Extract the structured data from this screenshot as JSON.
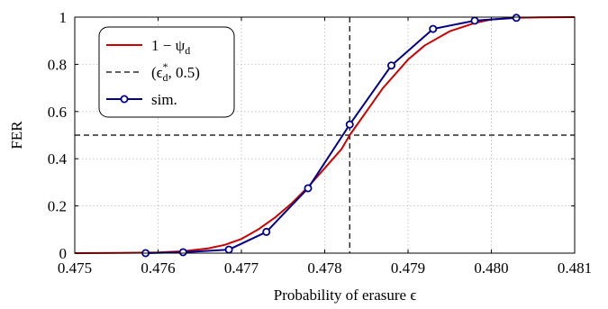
{
  "chart_data": {
    "type": "line",
    "xlabel": "Probability of erasure ϵ",
    "ylabel": "FER",
    "xlim": [
      0.475,
      0.481
    ],
    "ylim": [
      0,
      1
    ],
    "x_ticks": [
      "0.475",
      "0.476",
      "0.477",
      "0.478",
      "0.479",
      "0.480",
      "0.481"
    ],
    "y_ticks": [
      "0",
      "0.2",
      "0.4",
      "0.6",
      "0.8",
      "1"
    ],
    "grid": true,
    "legend_position": "top-left",
    "threshold": {
      "x": 0.4783,
      "y": 0.5
    },
    "series": [
      {
        "name": "1 − ψd",
        "color": "#cc0000",
        "style": "solid",
        "x": [
          0.475,
          0.4755,
          0.476,
          0.4763,
          0.4766,
          0.4768,
          0.477,
          0.4772,
          0.4774,
          0.4776,
          0.4778,
          0.478,
          0.4782,
          0.4783,
          0.4785,
          0.4787,
          0.479,
          0.4792,
          0.4795,
          0.4798,
          0.48,
          0.4803,
          0.4806,
          0.481
        ],
        "y": [
          0,
          0.001,
          0.003,
          0.008,
          0.02,
          0.035,
          0.06,
          0.1,
          0.15,
          0.21,
          0.28,
          0.36,
          0.44,
          0.5,
          0.6,
          0.7,
          0.82,
          0.88,
          0.94,
          0.975,
          0.99,
          0.997,
          0.999,
          1
        ]
      },
      {
        "name": "sim.",
        "color": "#00008b",
        "style": "solid-marker",
        "x": [
          0.47585,
          0.4763,
          0.47685,
          0.4773,
          0.4778,
          0.4783,
          0.4788,
          0.4793,
          0.4798,
          0.4803
        ],
        "y": [
          0.0,
          0.004,
          0.015,
          0.09,
          0.275,
          0.545,
          0.795,
          0.95,
          0.985,
          0.997
        ]
      }
    ],
    "legend": [
      {
        "label_main": "1 − ψ",
        "label_sub": "d"
      },
      {
        "label_main": "(ϵ",
        "label_sup": "*",
        "label_sub": "d",
        "label_tail": ", 0.5)"
      },
      {
        "label_main": "sim."
      }
    ]
  }
}
